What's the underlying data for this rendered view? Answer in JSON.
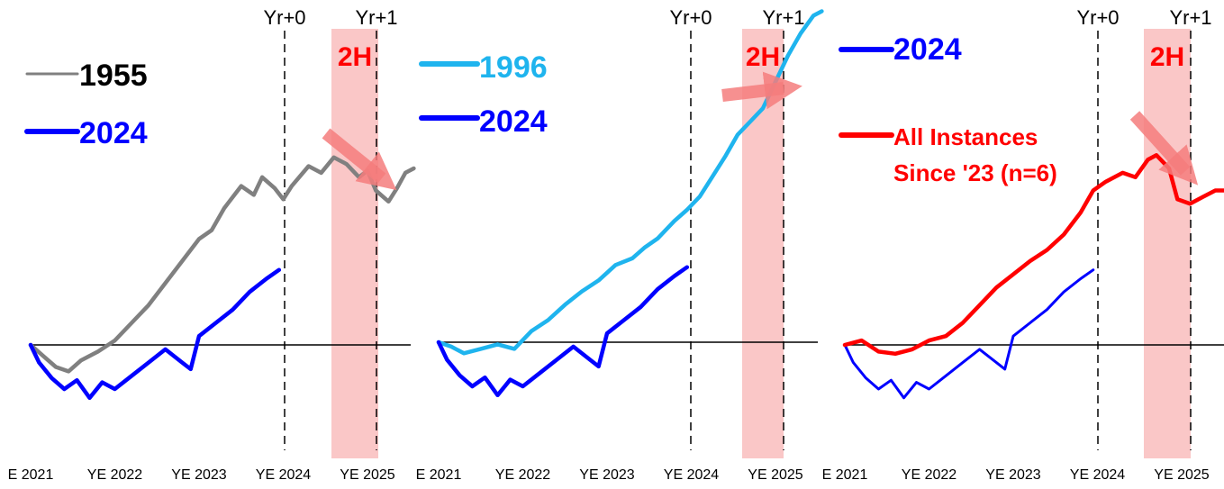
{
  "chart_data": [
    {
      "type": "line",
      "x_ticks": [
        "E 2021",
        "YE 2022",
        "YE 2023",
        "YE 2024",
        "YE 2025"
      ],
      "vlines": [
        "Yr+0",
        "Yr+1"
      ],
      "highlight_label": "2H",
      "zero_baseline": true,
      "series": [
        {
          "name": "1955",
          "color": "#808080",
          "legend_color": "#000000",
          "values": [
            [
              0,
              0
            ],
            [
              0.15,
              -0.05
            ],
            [
              0.3,
              -0.1
            ],
            [
              0.45,
              -0.12
            ],
            [
              0.6,
              -0.07
            ],
            [
              0.8,
              -0.03
            ],
            [
              1.0,
              0.02
            ],
            [
              1.2,
              0.1
            ],
            [
              1.4,
              0.18
            ],
            [
              1.6,
              0.28
            ],
            [
              1.8,
              0.38
            ],
            [
              2.0,
              0.48
            ],
            [
              2.15,
              0.52
            ],
            [
              2.3,
              0.62
            ],
            [
              2.5,
              0.72
            ],
            [
              2.65,
              0.68
            ],
            [
              2.75,
              0.76
            ],
            [
              2.9,
              0.71
            ],
            [
              3.0,
              0.66
            ],
            [
              3.1,
              0.72
            ],
            [
              3.3,
              0.81
            ],
            [
              3.45,
              0.78
            ],
            [
              3.6,
              0.85
            ],
            [
              3.75,
              0.82
            ],
            [
              3.9,
              0.76
            ],
            [
              4.0,
              0.79
            ],
            [
              4.1,
              0.7
            ],
            [
              4.25,
              0.65
            ],
            [
              4.35,
              0.71
            ],
            [
              4.45,
              0.78
            ],
            [
              4.55,
              0.8
            ]
          ]
        },
        {
          "name": "2024",
          "color": "#0000ff",
          "legend_color": "#0000ff",
          "values": [
            [
              0,
              0
            ],
            [
              0.1,
              -0.08
            ],
            [
              0.25,
              -0.15
            ],
            [
              0.4,
              -0.2
            ],
            [
              0.55,
              -0.16
            ],
            [
              0.7,
              -0.24
            ],
            [
              0.85,
              -0.17
            ],
            [
              1.0,
              -0.2
            ],
            [
              1.2,
              -0.14
            ],
            [
              1.4,
              -0.08
            ],
            [
              1.6,
              -0.02
            ],
            [
              1.8,
              -0.08
            ],
            [
              1.9,
              -0.11
            ],
            [
              2.0,
              0.04
            ],
            [
              2.2,
              0.1
            ],
            [
              2.4,
              0.16
            ],
            [
              2.6,
              0.24
            ],
            [
              2.8,
              0.3
            ],
            [
              2.95,
              0.34
            ]
          ]
        }
      ]
    },
    {
      "type": "line",
      "x_ticks": [
        "E 2021",
        "YE 2022",
        "YE 2023",
        "YE 2024",
        "YE 2025"
      ],
      "vlines": [
        "Yr+0",
        "Yr+1"
      ],
      "highlight_label": "2H",
      "zero_baseline": true,
      "series": [
        {
          "name": "1996",
          "color": "#1fb4ee",
          "legend_color": "#1fb4ee",
          "values": [
            [
              0,
              0
            ],
            [
              0.15,
              -0.02
            ],
            [
              0.3,
              -0.05
            ],
            [
              0.5,
              -0.03
            ],
            [
              0.7,
              -0.01
            ],
            [
              0.9,
              -0.03
            ],
            [
              1.1,
              0.05
            ],
            [
              1.3,
              0.1
            ],
            [
              1.5,
              0.17
            ],
            [
              1.7,
              0.23
            ],
            [
              1.9,
              0.28
            ],
            [
              2.1,
              0.35
            ],
            [
              2.3,
              0.38
            ],
            [
              2.45,
              0.43
            ],
            [
              2.6,
              0.47
            ],
            [
              2.8,
              0.55
            ],
            [
              2.95,
              0.6
            ],
            [
              3.1,
              0.66
            ],
            [
              3.25,
              0.75
            ],
            [
              3.4,
              0.84
            ],
            [
              3.55,
              0.94
            ],
            [
              3.7,
              1.0
            ],
            [
              3.85,
              1.06
            ],
            [
              4.0,
              1.18
            ],
            [
              4.15,
              1.3
            ],
            [
              4.3,
              1.4
            ],
            [
              4.45,
              1.48
            ],
            [
              4.55,
              1.5
            ]
          ]
        },
        {
          "name": "2024",
          "color": "#0000ff",
          "legend_color": "#0000ff",
          "values": [
            [
              0,
              0
            ],
            [
              0.1,
              -0.08
            ],
            [
              0.25,
              -0.15
            ],
            [
              0.4,
              -0.2
            ],
            [
              0.55,
              -0.16
            ],
            [
              0.7,
              -0.24
            ],
            [
              0.85,
              -0.17
            ],
            [
              1.0,
              -0.2
            ],
            [
              1.2,
              -0.14
            ],
            [
              1.4,
              -0.08
            ],
            [
              1.6,
              -0.02
            ],
            [
              1.8,
              -0.08
            ],
            [
              1.9,
              -0.11
            ],
            [
              2.0,
              0.04
            ],
            [
              2.2,
              0.1
            ],
            [
              2.4,
              0.16
            ],
            [
              2.6,
              0.24
            ],
            [
              2.8,
              0.3
            ],
            [
              2.95,
              0.34
            ]
          ]
        }
      ]
    },
    {
      "type": "line",
      "x_ticks": [
        "E 2021",
        "YE 2022",
        "YE 2023",
        "YE 2024",
        "YE 2025"
      ],
      "vlines": [
        "Yr+0",
        "Yr+1"
      ],
      "highlight_label": "2H",
      "zero_baseline": true,
      "series": [
        {
          "name": "2024",
          "color": "#0000ff",
          "legend_color": "#0000ff",
          "values": [
            [
              0,
              0
            ],
            [
              0.1,
              -0.08
            ],
            [
              0.25,
              -0.15
            ],
            [
              0.4,
              -0.2
            ],
            [
              0.55,
              -0.16
            ],
            [
              0.7,
              -0.24
            ],
            [
              0.85,
              -0.17
            ],
            [
              1.0,
              -0.2
            ],
            [
              1.2,
              -0.14
            ],
            [
              1.4,
              -0.08
            ],
            [
              1.6,
              -0.02
            ],
            [
              1.8,
              -0.08
            ],
            [
              1.9,
              -0.11
            ],
            [
              2.0,
              0.04
            ],
            [
              2.2,
              0.1
            ],
            [
              2.4,
              0.16
            ],
            [
              2.6,
              0.24
            ],
            [
              2.8,
              0.3
            ],
            [
              2.95,
              0.34
            ]
          ]
        },
        {
          "name": "All Instances Since '23 (n=6)",
          "name_lines": [
            "All Instances",
            "Since '23 (n=6)"
          ],
          "color": "#ff0000",
          "legend_color": "#ff0000",
          "values": [
            [
              0,
              0
            ],
            [
              0.2,
              0.02
            ],
            [
              0.4,
              -0.03
            ],
            [
              0.6,
              -0.04
            ],
            [
              0.8,
              -0.02
            ],
            [
              1.0,
              0.02
            ],
            [
              1.2,
              0.04
            ],
            [
              1.4,
              0.1
            ],
            [
              1.6,
              0.18
            ],
            [
              1.8,
              0.26
            ],
            [
              2.0,
              0.32
            ],
            [
              2.2,
              0.38
            ],
            [
              2.4,
              0.43
            ],
            [
              2.6,
              0.5
            ],
            [
              2.8,
              0.6
            ],
            [
              2.95,
              0.7
            ],
            [
              3.1,
              0.74
            ],
            [
              3.3,
              0.78
            ],
            [
              3.45,
              0.76
            ],
            [
              3.6,
              0.84
            ],
            [
              3.7,
              0.86
            ],
            [
              3.85,
              0.8
            ],
            [
              3.95,
              0.66
            ],
            [
              4.1,
              0.64
            ],
            [
              4.25,
              0.67
            ],
            [
              4.4,
              0.7
            ],
            [
              4.55,
              0.7
            ]
          ]
        }
      ]
    }
  ]
}
